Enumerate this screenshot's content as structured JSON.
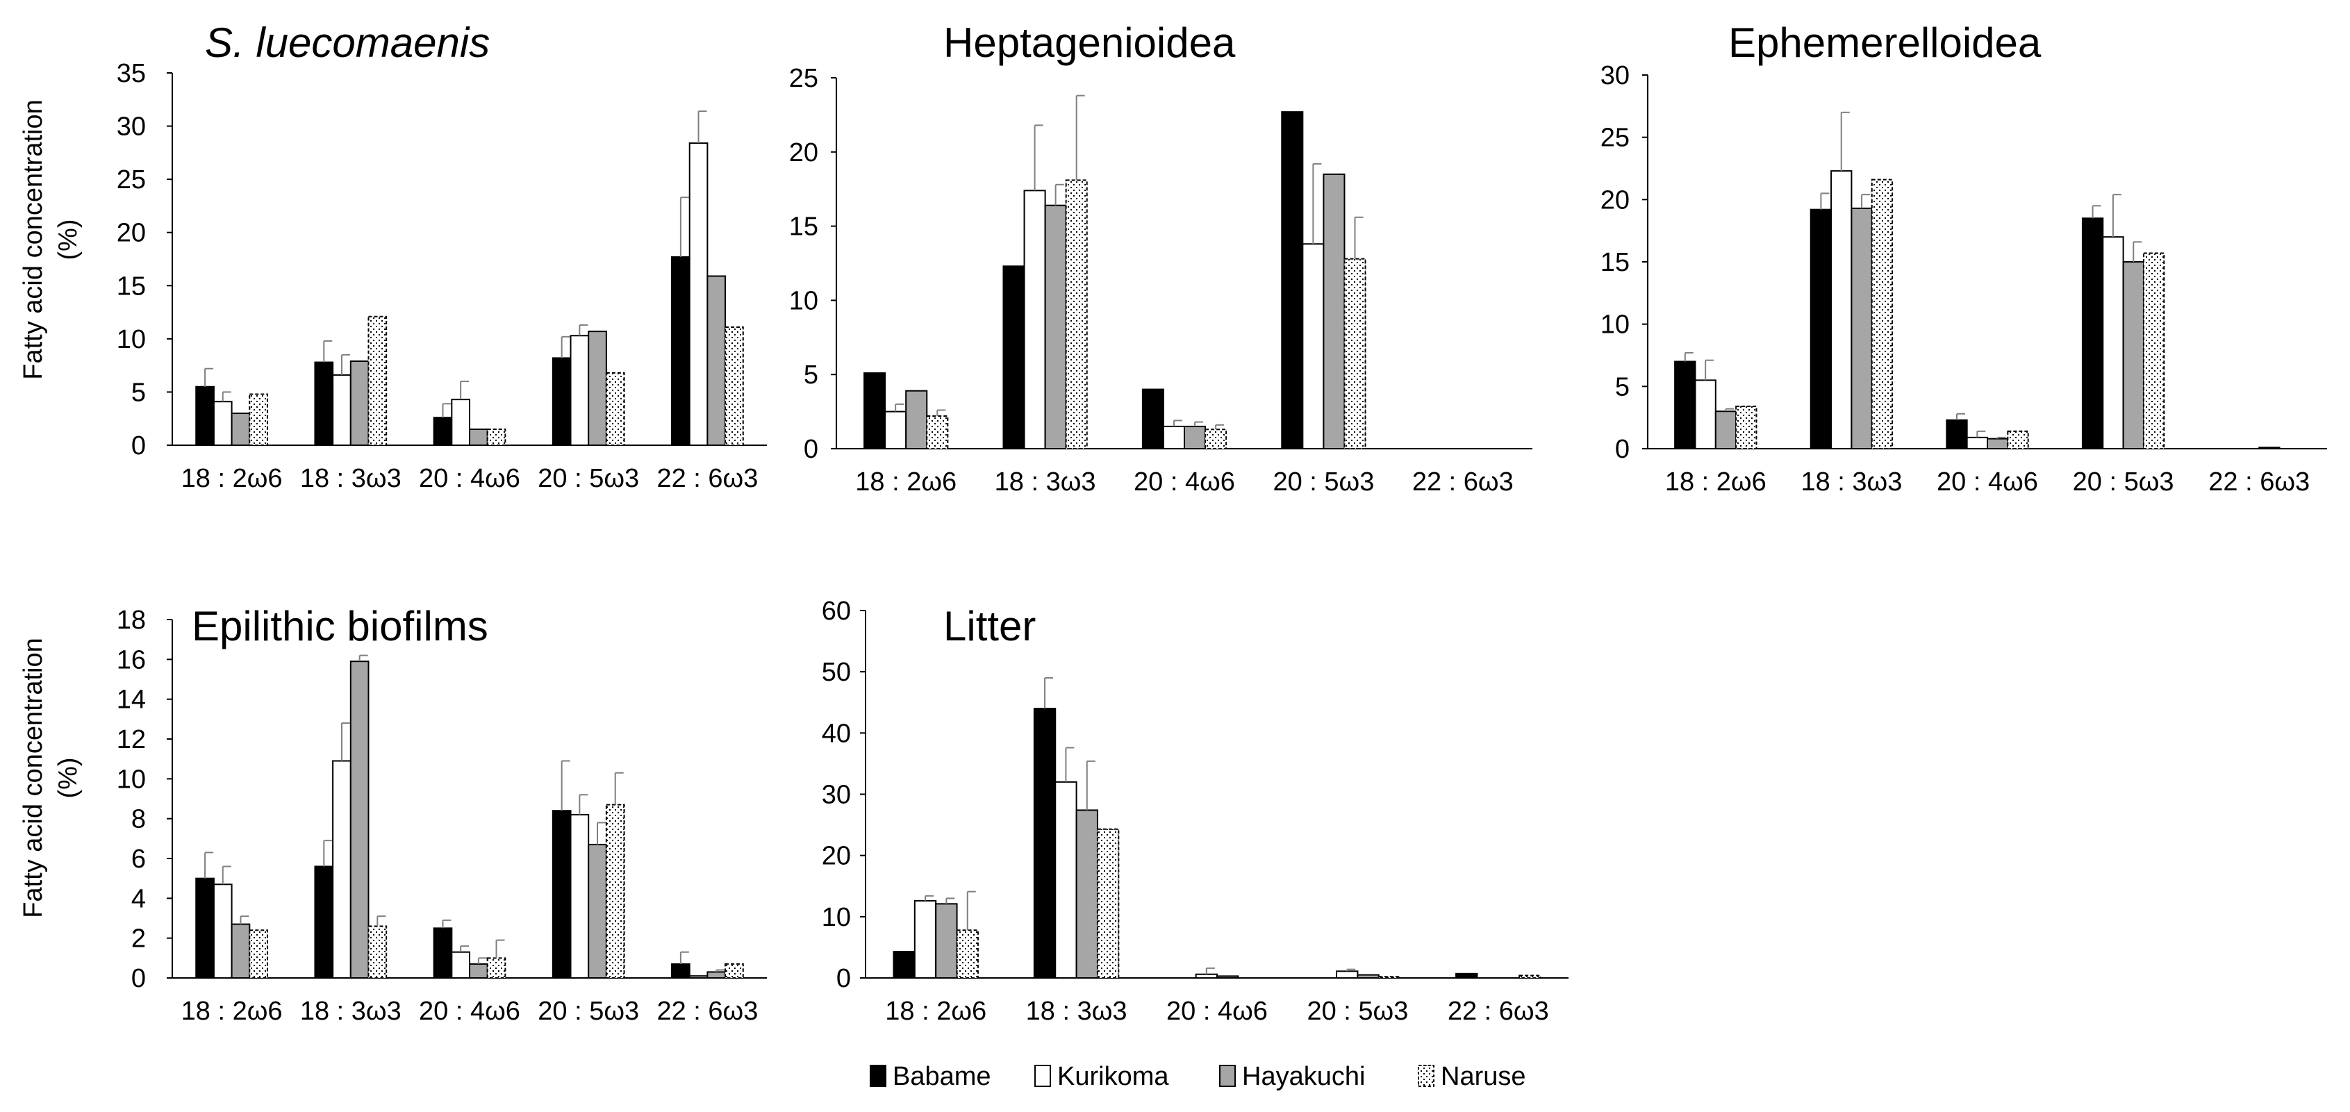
{
  "colors": {
    "Babame": "#000000",
    "Kurikoma": "#ffffff",
    "Hayakuchi": "#a6a6a6",
    "Naruse": "dotted"
  },
  "legend": [
    "Babame",
    "Kurikoma",
    "Hayakuchi",
    "Naruse"
  ],
  "ylabel_line1": "Fatty acid concentration",
  "ylabel_line2": "(%)",
  "chart_data": [
    {
      "type": "bar",
      "title": "S. luecomaenis",
      "title_italic": true,
      "categories": [
        "18 : 2ω6",
        "18 : 3ω3",
        "20 : 4ω6",
        "20 : 5ω3",
        "22 : 6ω3"
      ],
      "ylim": [
        0,
        35
      ],
      "yticks": [
        0,
        5,
        10,
        15,
        20,
        25,
        30,
        35
      ],
      "ylabel": "Fatty acid concentration (%)",
      "series": [
        {
          "name": "Babame",
          "values": [
            5.5,
            7.8,
            2.6,
            8.2,
            17.7
          ],
          "errors": [
            1.7,
            2.0,
            1.3,
            2.0,
            5.6
          ]
        },
        {
          "name": "Kurikoma",
          "values": [
            4.1,
            6.6,
            4.3,
            10.3,
            28.4
          ],
          "errors": [
            0.9,
            1.9,
            1.7,
            1.0,
            3.0
          ]
        },
        {
          "name": "Hayakuchi",
          "values": [
            3.0,
            7.9,
            1.5,
            10.7,
            15.9
          ],
          "errors": [
            0,
            0,
            0,
            0,
            0
          ]
        },
        {
          "name": "Naruse",
          "values": [
            4.8,
            12.1,
            1.5,
            6.8,
            11.1
          ],
          "errors": [
            0,
            0,
            0,
            0,
            0
          ]
        }
      ]
    },
    {
      "type": "bar",
      "title": "Heptagenioidea",
      "title_italic": false,
      "categories": [
        "18 : 2ω6",
        "18 : 3ω3",
        "20 : 4ω6",
        "20 : 5ω3",
        "22 : 6ω3"
      ],
      "ylim": [
        0,
        25
      ],
      "yticks": [
        0,
        5,
        10,
        15,
        20,
        25
      ],
      "series": [
        {
          "name": "Babame",
          "values": [
            5.1,
            12.3,
            4.0,
            22.7,
            0
          ],
          "errors": [
            0,
            0,
            0,
            0,
            0
          ]
        },
        {
          "name": "Kurikoma",
          "values": [
            2.5,
            17.4,
            1.5,
            13.8,
            0
          ],
          "errors": [
            0.5,
            4.4,
            0.4,
            5.4,
            0
          ]
        },
        {
          "name": "Hayakuchi",
          "values": [
            3.9,
            16.4,
            1.5,
            18.5,
            0
          ],
          "errors": [
            0,
            1.4,
            0.3,
            0,
            0
          ]
        },
        {
          "name": "Naruse",
          "values": [
            2.2,
            18.1,
            1.3,
            12.8,
            0
          ],
          "errors": [
            0.4,
            5.7,
            0.3,
            2.8,
            0
          ]
        }
      ]
    },
    {
      "type": "bar",
      "title": "Ephemerelloidea",
      "title_italic": false,
      "categories": [
        "18 : 2ω6",
        "18 : 3ω3",
        "20 : 4ω6",
        "20 : 5ω3",
        "22 : 6ω3"
      ],
      "ylim": [
        0,
        30
      ],
      "yticks": [
        0,
        5,
        10,
        15,
        20,
        25,
        30
      ],
      "series": [
        {
          "name": "Babame",
          "values": [
            7.0,
            19.2,
            2.3,
            18.5,
            0
          ],
          "errors": [
            0.7,
            1.3,
            0.5,
            1.0,
            0
          ]
        },
        {
          "name": "Kurikoma",
          "values": [
            5.5,
            22.3,
            0.9,
            17.0,
            0
          ],
          "errors": [
            1.6,
            4.7,
            0.5,
            3.4,
            0
          ]
        },
        {
          "name": "Hayakuchi",
          "values": [
            3.0,
            19.3,
            0.8,
            15.0,
            0.1
          ],
          "errors": [
            0.2,
            1.1,
            0.1,
            1.6,
            0
          ]
        },
        {
          "name": "Naruse",
          "values": [
            3.4,
            21.6,
            1.4,
            15.7,
            0
          ],
          "errors": [
            0,
            0,
            0,
            0,
            0
          ]
        }
      ]
    },
    {
      "type": "bar",
      "title": "Epilithic biofilms",
      "title_italic": false,
      "categories": [
        "18 : 2ω6",
        "18 : 3ω3",
        "20 : 4ω6",
        "20 : 5ω3",
        "22 : 6ω3"
      ],
      "ylim": [
        0,
        18
      ],
      "yticks": [
        0,
        2,
        4,
        6,
        8,
        10,
        12,
        14,
        16,
        18
      ],
      "ylabel": "Fatty acid concentration (%)",
      "series": [
        {
          "name": "Babame",
          "values": [
            5.0,
            5.6,
            2.5,
            8.4,
            0.7
          ],
          "errors": [
            1.3,
            1.3,
            0.4,
            2.5,
            0.6
          ]
        },
        {
          "name": "Kurikoma",
          "values": [
            4.7,
            10.9,
            1.3,
            8.2,
            0.1
          ],
          "errors": [
            0.9,
            1.9,
            0.3,
            1.0,
            0
          ]
        },
        {
          "name": "Hayakuchi",
          "values": [
            2.7,
            15.9,
            0.7,
            6.7,
            0.3
          ],
          "errors": [
            0.4,
            0.3,
            0.3,
            1.1,
            0.1
          ]
        },
        {
          "name": "Naruse",
          "values": [
            2.4,
            2.6,
            1.0,
            8.7,
            0.7
          ],
          "errors": [
            0,
            0.5,
            0.9,
            1.6,
            0
          ]
        }
      ]
    },
    {
      "type": "bar",
      "title": "Litter",
      "title_italic": false,
      "categories": [
        "18 : 2ω6",
        "18 : 3ω3",
        "20 : 4ω6",
        "20 : 5ω3",
        "22 : 6ω3"
      ],
      "ylim": [
        0,
        60
      ],
      "yticks": [
        0,
        10,
        20,
        30,
        40,
        50,
        60
      ],
      "series": [
        {
          "name": "Babame",
          "values": [
            4.3,
            44.0,
            0,
            0,
            0.7
          ],
          "errors": [
            0,
            5.0,
            0,
            0,
            0
          ]
        },
        {
          "name": "Kurikoma",
          "values": [
            12.6,
            32.0,
            0.6,
            1.1,
            0
          ],
          "errors": [
            0.8,
            5.6,
            1.0,
            0.3,
            0
          ]
        },
        {
          "name": "Hayakuchi",
          "values": [
            12.1,
            27.4,
            0.3,
            0.5,
            0
          ],
          "errors": [
            0.9,
            8.0,
            0,
            0,
            0
          ]
        },
        {
          "name": "Naruse",
          "values": [
            7.8,
            24.3,
            0,
            0.2,
            0.4
          ],
          "errors": [
            6.3,
            0,
            0,
            0,
            0
          ]
        }
      ]
    }
  ]
}
